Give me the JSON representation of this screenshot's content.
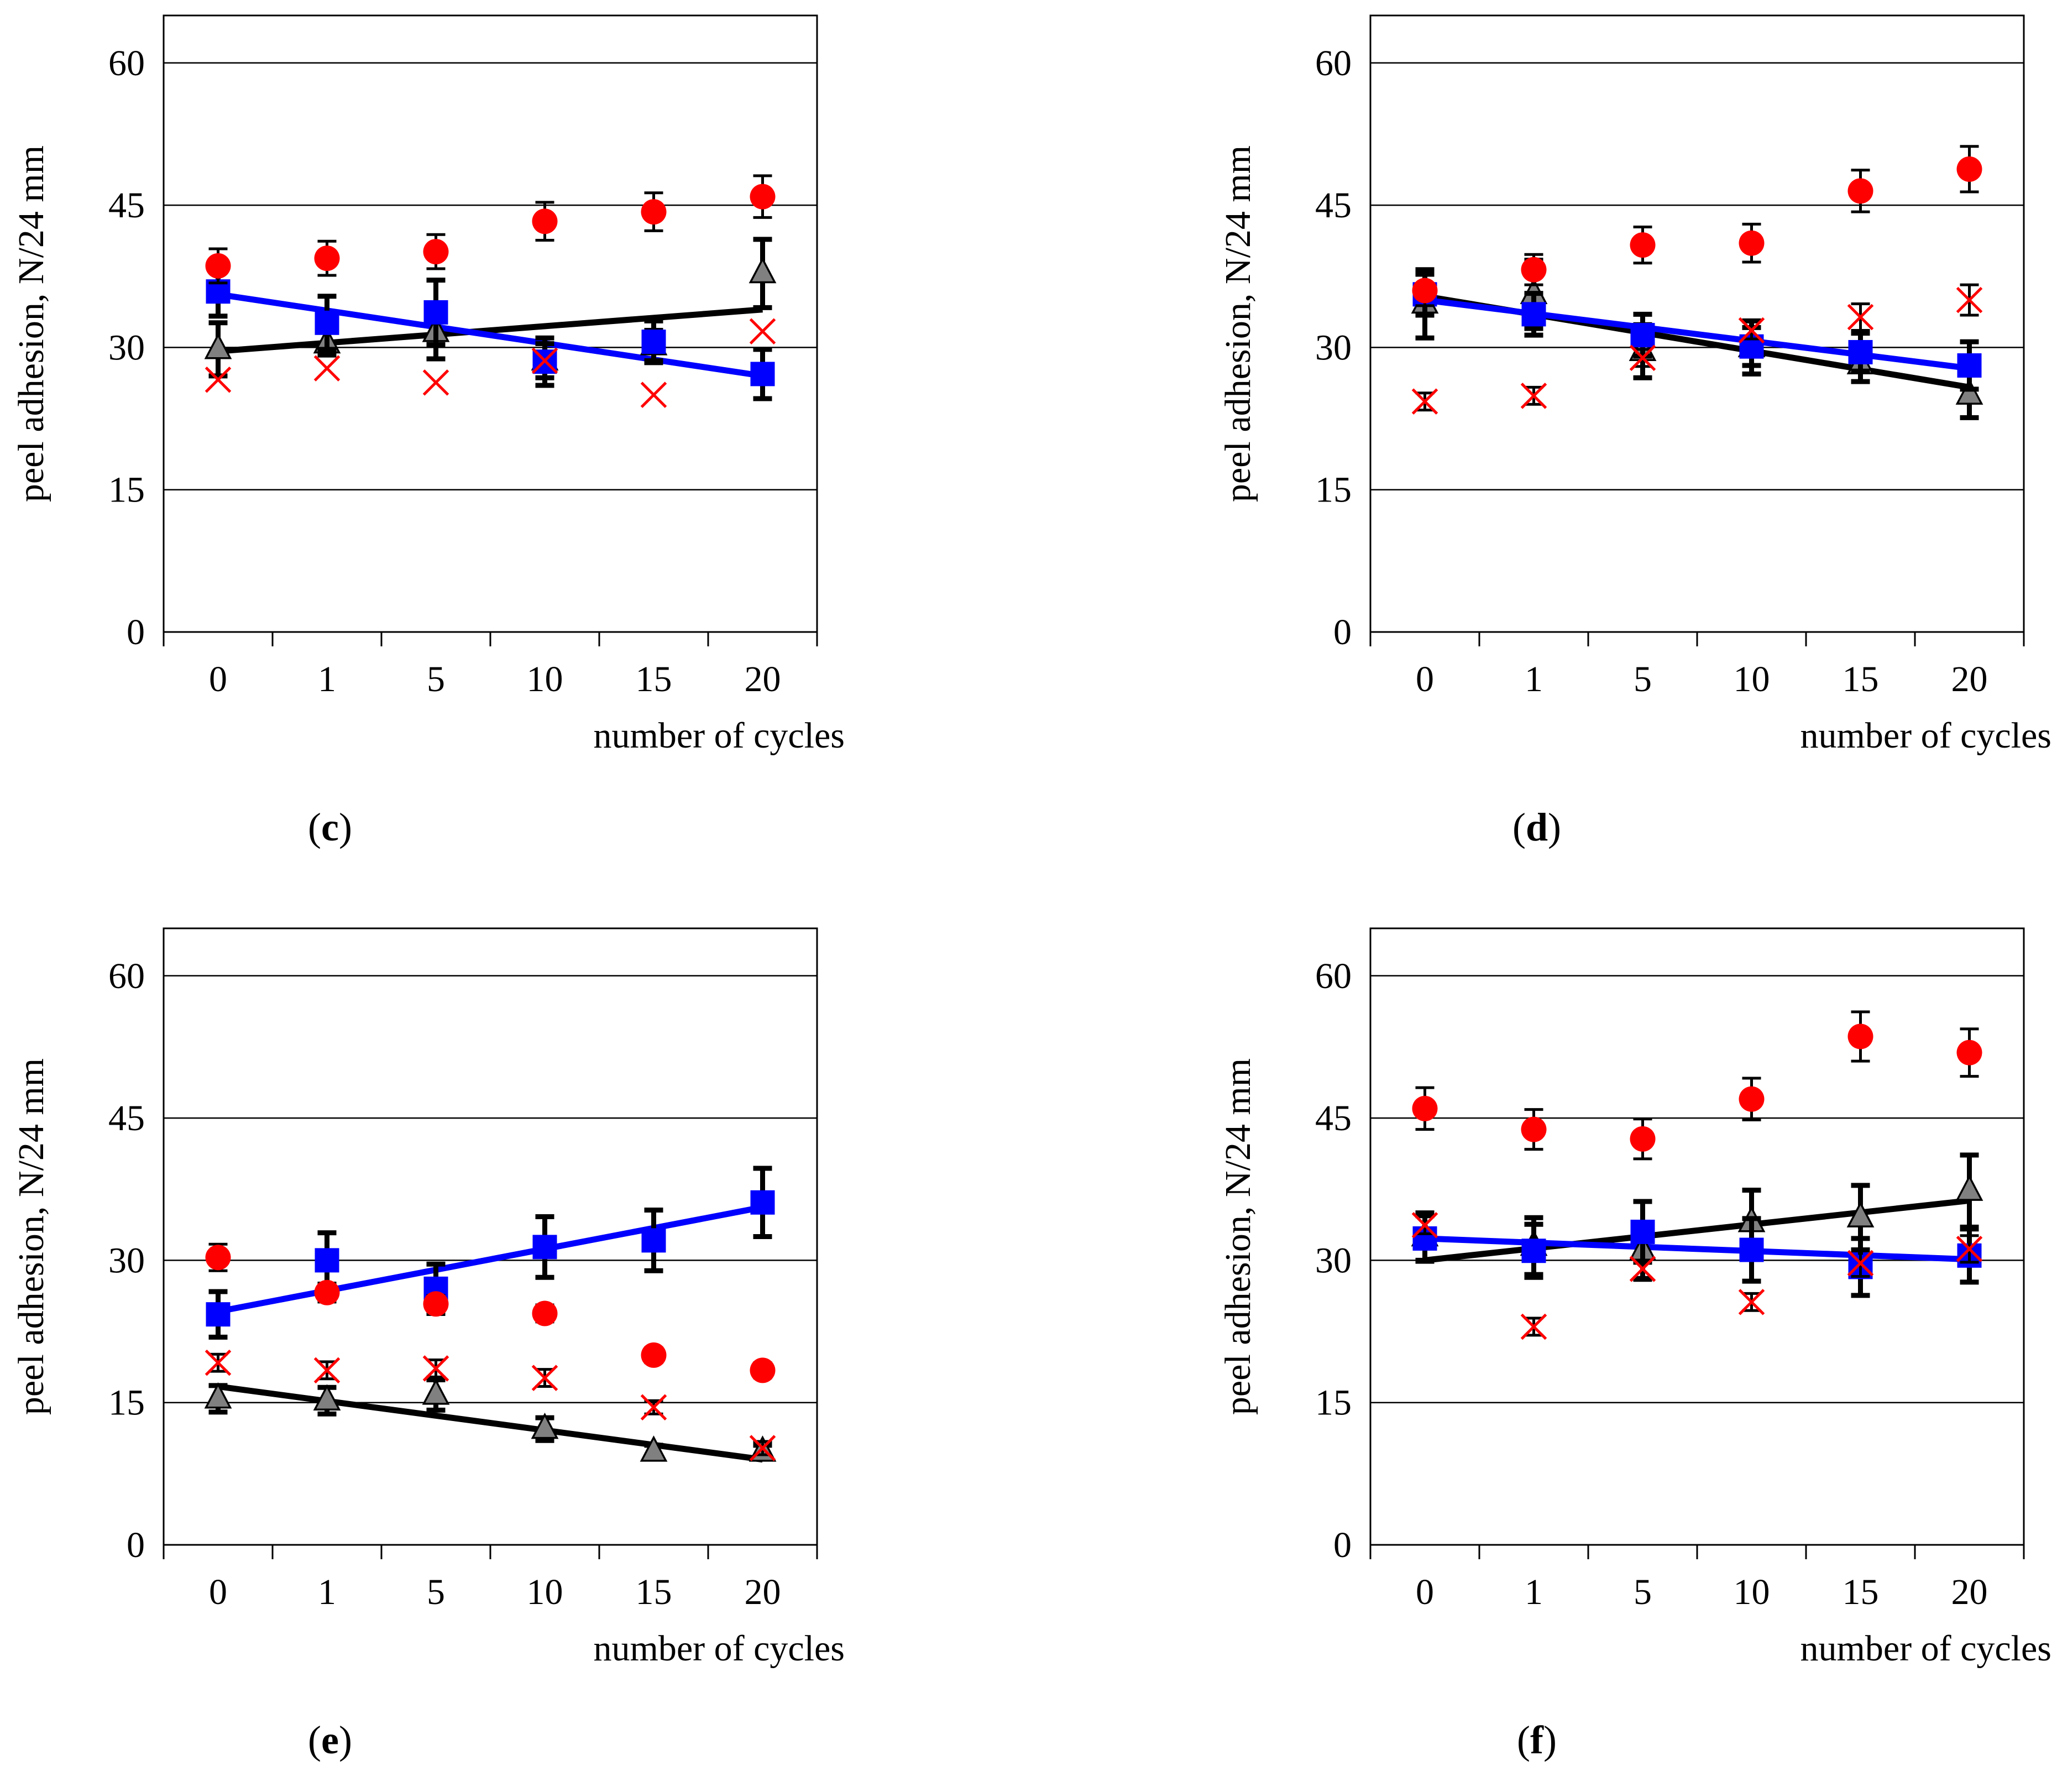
{
  "figure": {
    "colors": {
      "red": "#ff0000",
      "blue": "#0000ff",
      "black": "#000000",
      "gray": "#808080"
    }
  },
  "chart_data": [
    {
      "panel": "c",
      "type": "scatter",
      "caption": {
        "open": "(",
        "letter": "c",
        "close": ")"
      },
      "xlabel": "number of cycles",
      "ylabel": "peel adhesion, N/24 mm",
      "categories": [
        "0",
        "1",
        "5",
        "10",
        "15",
        "20"
      ],
      "ylim": [
        0,
        65
      ],
      "yticks": [
        0,
        15,
        30,
        45,
        60
      ],
      "grid": true,
      "series": [
        {
          "name": "circle",
          "marker": "circle",
          "color": "#ff0000",
          "values": [
            38.6,
            39.4,
            40.1,
            43.3,
            44.3,
            45.9
          ],
          "errors": [
            1.8,
            1.8,
            1.8,
            2.0,
            2.0,
            2.2
          ],
          "trend": null
        },
        {
          "name": "triangle",
          "marker": "triangle",
          "color": "#808080",
          "values": [
            29.8,
            30.4,
            31.6,
            28.6,
            30.2,
            37.8
          ],
          "errors": [
            2.8,
            1.2,
            2.8,
            1.8,
            1.6,
            3.6
          ],
          "trend": [
            29.6,
            34.0
          ]
        },
        {
          "name": "square",
          "marker": "square",
          "color": "#0000ff",
          "values": [
            35.9,
            32.6,
            33.7,
            28.5,
            30.6,
            27.2
          ],
          "errors": [
            2.6,
            2.8,
            3.4,
            2.5,
            2.2,
            2.6
          ],
          "trend": [
            35.6,
            27.0
          ]
        },
        {
          "name": "cross",
          "marker": "x",
          "color": "#ff0000",
          "values": [
            26.6,
            27.8,
            26.3,
            28.6,
            25.0,
            31.7
          ],
          "errors": [
            0,
            0,
            0,
            0,
            0,
            0
          ],
          "trend": null
        }
      ]
    },
    {
      "panel": "d",
      "type": "scatter",
      "caption": {
        "open": "(",
        "letter": "d",
        "close": ")"
      },
      "xlabel": "number of cycles",
      "ylabel": "peel adhesion, N/24 mm",
      "categories": [
        "0",
        "1",
        "5",
        "10",
        "15",
        "20"
      ],
      "ylim": [
        0,
        65
      ],
      "yticks": [
        0,
        15,
        30,
        45,
        60
      ],
      "grid": true,
      "series": [
        {
          "name": "circle",
          "marker": "circle",
          "color": "#ff0000",
          "values": [
            36.0,
            38.2,
            40.8,
            41.0,
            46.5,
            48.8
          ],
          "errors": [
            1.6,
            1.6,
            1.9,
            2.0,
            2.2,
            2.4
          ],
          "trend": null
        },
        {
          "name": "triangle",
          "marker": "triangle",
          "color": "#808080",
          "values": [
            34.6,
            35.6,
            29.6,
            30.0,
            28.2,
            25.0
          ],
          "errors": [
            3.6,
            3.6,
            2.8,
            2.8,
            1.8,
            2.4
          ],
          "trend": [
            35.4,
            25.8
          ]
        },
        {
          "name": "square",
          "marker": "square",
          "color": "#0000ff",
          "values": [
            35.6,
            33.5,
            31.3,
            30.1,
            29.5,
            28.1
          ],
          "errors": [
            2.2,
            2.2,
            2.2,
            2.0,
            2.0,
            2.5
          ],
          "trend": [
            35.0,
            27.8
          ]
        },
        {
          "name": "cross",
          "marker": "x",
          "color": "#ff0000",
          "values": [
            24.3,
            24.9,
            28.9,
            31.8,
            33.2,
            35.0
          ],
          "errors": [
            0.9,
            0.9,
            0.9,
            0.9,
            1.4,
            1.6
          ],
          "trend": null
        }
      ]
    },
    {
      "panel": "e",
      "type": "scatter",
      "caption": {
        "open": "(",
        "letter": "e",
        "close": ")"
      },
      "xlabel": "number of cycles",
      "ylabel": "peel adhesion, N/24 mm",
      "categories": [
        "0",
        "1",
        "5",
        "10",
        "15",
        "20"
      ],
      "ylim": [
        0,
        65
      ],
      "yticks": [
        0,
        15,
        30,
        45,
        60
      ],
      "grid": true,
      "series": [
        {
          "name": "circle",
          "marker": "circle",
          "color": "#ff0000",
          "values": [
            30.3,
            26.6,
            25.4,
            24.4,
            20.0,
            18.4
          ],
          "errors": [
            1.4,
            1.0,
            0.9,
            0.9,
            0.8,
            0.8
          ],
          "trend": null
        },
        {
          "name": "triangle",
          "marker": "triangle",
          "color": "#808080",
          "values": [
            15.4,
            15.2,
            15.8,
            12.2,
            9.8,
            9.8
          ],
          "errors": [
            1.4,
            1.4,
            1.6,
            1.2,
            0.7,
            0.7
          ],
          "trend": [
            16.7,
            9.0
          ]
        },
        {
          "name": "square",
          "marker": "square",
          "color": "#0000ff",
          "values": [
            24.3,
            30.0,
            27.0,
            31.4,
            32.1,
            36.1
          ],
          "errors": [
            2.4,
            2.9,
            2.6,
            3.2,
            3.2,
            3.6
          ],
          "trend": [
            24.6,
            35.6
          ]
        },
        {
          "name": "cross",
          "marker": "x",
          "color": "#ff0000",
          "values": [
            19.2,
            18.4,
            18.6,
            17.6,
            14.5,
            10.2
          ],
          "errors": [
            0.9,
            0.9,
            0.9,
            0.9,
            0.7,
            0.7
          ],
          "trend": null
        }
      ]
    },
    {
      "panel": "f",
      "type": "scatter",
      "caption": {
        "open": "(",
        "letter": "f",
        "close": ")"
      },
      "xlabel": "number of cycles",
      "ylabel": "peel adhesion, N/24 mm",
      "categories": [
        "0",
        "1",
        "5",
        "10",
        "15",
        "20"
      ],
      "ylim": [
        0,
        65
      ],
      "yticks": [
        0,
        15,
        30,
        45,
        60
      ],
      "grid": true,
      "series": [
        {
          "name": "circle",
          "marker": "circle",
          "color": "#ff0000",
          "values": [
            46.0,
            43.8,
            42.8,
            47.0,
            53.6,
            51.9
          ],
          "errors": [
            2.2,
            2.1,
            2.1,
            2.2,
            2.6,
            2.5
          ],
          "trend": null
        },
        {
          "name": "triangle",
          "marker": "triangle",
          "color": "#808080",
          "values": [
            32.5,
            31.5,
            31.0,
            34.0,
            34.5,
            37.3
          ],
          "errors": [
            2.5,
            3.0,
            3.0,
            3.4,
            3.4,
            3.8
          ],
          "trend": [
            30.0,
            36.3
          ]
        },
        {
          "name": "square",
          "marker": "square",
          "color": "#0000ff",
          "values": [
            32.3,
            31.0,
            33.0,
            31.1,
            29.3,
            30.5
          ],
          "errors": [
            2.4,
            2.8,
            3.2,
            3.3,
            3.0,
            2.8
          ],
          "trend": [
            32.3,
            30.1
          ]
        },
        {
          "name": "cross",
          "marker": "x",
          "color": "#ff0000",
          "values": [
            33.7,
            23.0,
            29.1,
            25.6,
            29.7,
            31.2
          ],
          "errors": [
            0.9,
            0.9,
            0.9,
            0.9,
            1.4,
            1.4
          ],
          "trend": null
        }
      ]
    }
  ]
}
